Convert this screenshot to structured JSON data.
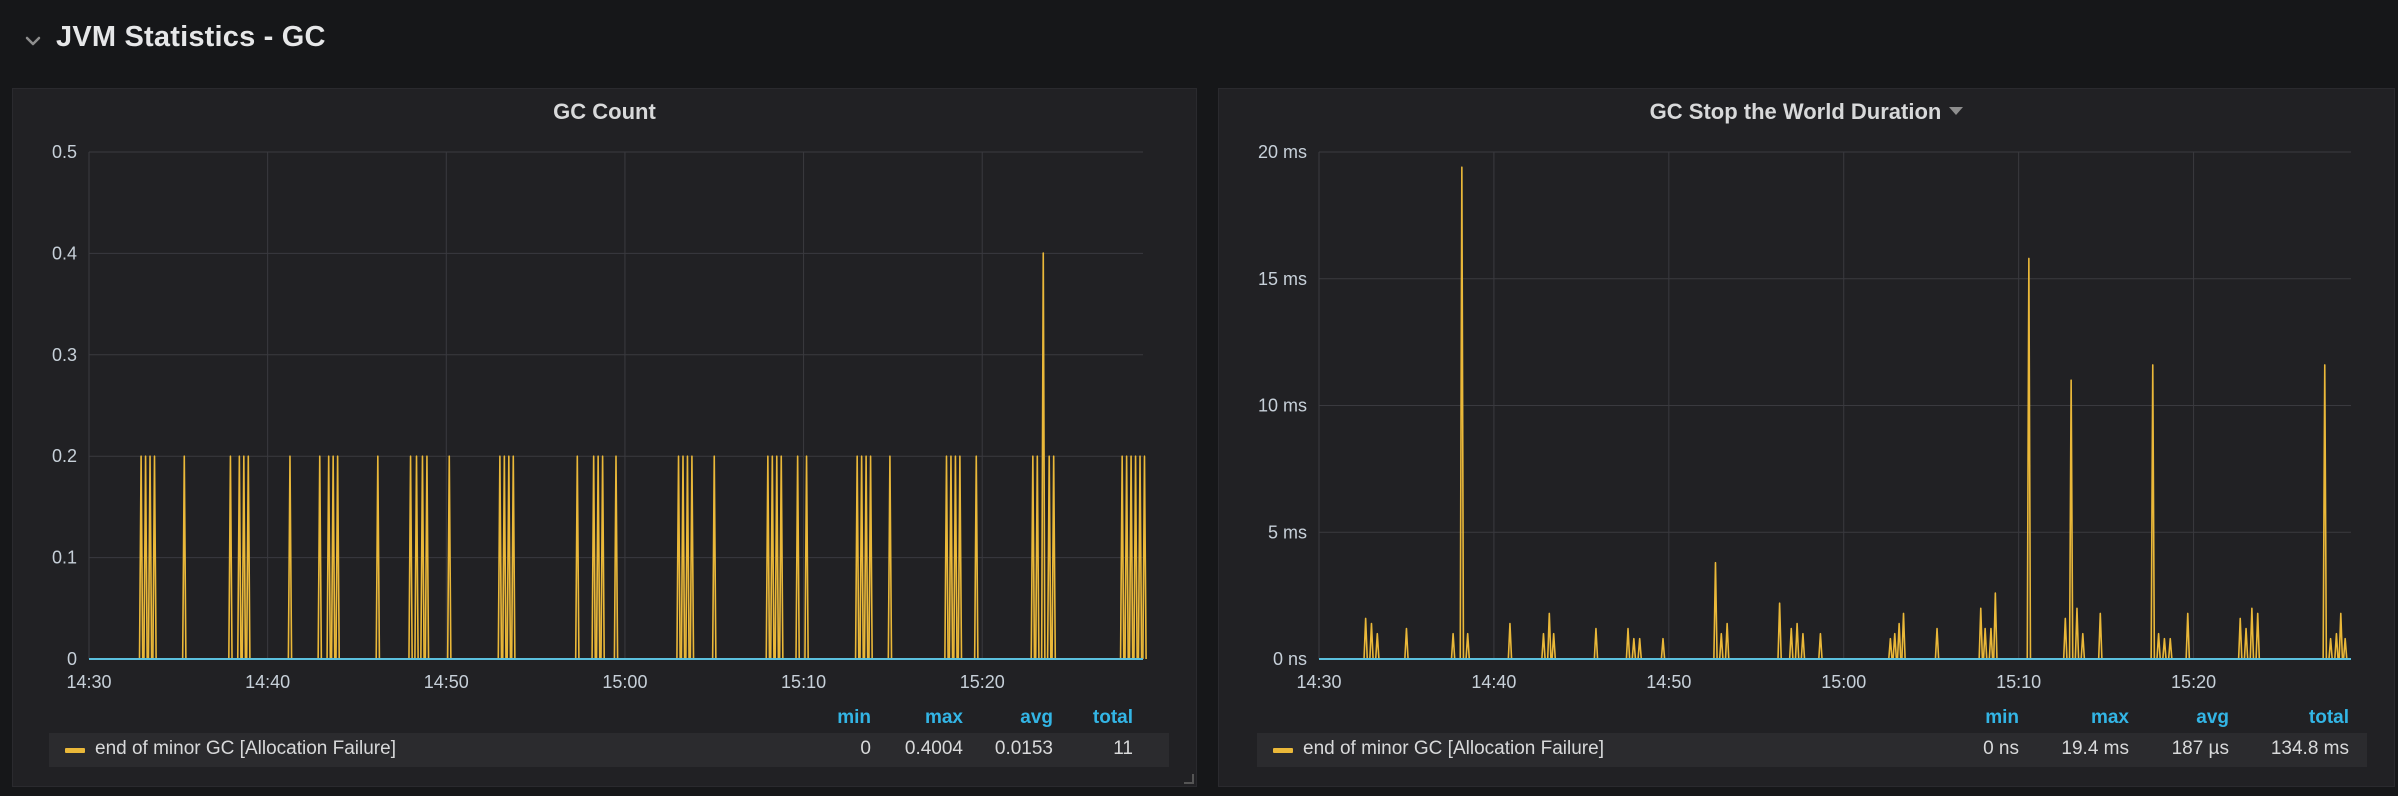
{
  "row": {
    "title": "JVM Statistics - GC",
    "collapse_icon": "chevron-down-icon"
  },
  "colors": {
    "series": "#eab839",
    "legend_header": "#33b5e5",
    "baseline": "#5bc0de",
    "grid": "#3a3a3f"
  },
  "panels": {
    "gc_count": {
      "title": "GC Count",
      "legend": {
        "headers": {
          "min": "min",
          "max": "max",
          "avg": "avg",
          "total": "total"
        },
        "series_name": "end of minor GC [Allocation Failure]",
        "min": "0",
        "max": "0.4004",
        "avg": "0.0153",
        "total": "11"
      }
    },
    "gc_stw": {
      "title": "GC Stop the World Duration",
      "title_menu_icon": "caret-down-icon",
      "legend": {
        "headers": {
          "min": "min",
          "max": "max",
          "avg": "avg",
          "total": "total"
        },
        "series_name": "end of minor GC [Allocation Failure]",
        "min": "0 ns",
        "max": "19.4 ms",
        "avg": "187 µs",
        "total": "134.8 ms"
      }
    }
  },
  "chart_data": [
    {
      "type": "line",
      "title": "GC Count",
      "x_ticks": [
        "14:30",
        "14:40",
        "14:50",
        "15:00",
        "15:10",
        "15:20"
      ],
      "y_ticks": [
        "0",
        "0.1",
        "0.2",
        "0.3",
        "0.4",
        "0.5"
      ],
      "xlim": [
        "14:30",
        "15:29"
      ],
      "ylim": [
        0,
        0.5
      ],
      "grid": true,
      "legend_position": "bottom",
      "series": [
        {
          "name": "end of minor GC [Allocation Failure]",
          "spikes": [
            {
              "t": "14:32:55",
              "v": 0.2
            },
            {
              "t": "14:33:10",
              "v": 0.2
            },
            {
              "t": "14:33:25",
              "v": 0.2
            },
            {
              "t": "14:33:40",
              "v": 0.2
            },
            {
              "t": "14:35:20",
              "v": 0.2
            },
            {
              "t": "14:37:55",
              "v": 0.2
            },
            {
              "t": "14:38:25",
              "v": 0.2
            },
            {
              "t": "14:38:40",
              "v": 0.2
            },
            {
              "t": "14:38:55",
              "v": 0.2
            },
            {
              "t": "14:41:15",
              "v": 0.2
            },
            {
              "t": "14:42:55",
              "v": 0.2
            },
            {
              "t": "14:43:25",
              "v": 0.2
            },
            {
              "t": "14:43:40",
              "v": 0.2
            },
            {
              "t": "14:43:55",
              "v": 0.2
            },
            {
              "t": "14:46:10",
              "v": 0.2
            },
            {
              "t": "14:48:00",
              "v": 0.2
            },
            {
              "t": "14:48:20",
              "v": 0.2
            },
            {
              "t": "14:48:40",
              "v": 0.2
            },
            {
              "t": "14:48:55",
              "v": 0.2
            },
            {
              "t": "14:50:10",
              "v": 0.2
            },
            {
              "t": "14:53:00",
              "v": 0.2
            },
            {
              "t": "14:53:15",
              "v": 0.2
            },
            {
              "t": "14:53:30",
              "v": 0.2
            },
            {
              "t": "14:53:45",
              "v": 0.2
            },
            {
              "t": "14:57:20",
              "v": 0.2
            },
            {
              "t": "14:58:15",
              "v": 0.2
            },
            {
              "t": "14:58:30",
              "v": 0.2
            },
            {
              "t": "14:58:45",
              "v": 0.2
            },
            {
              "t": "14:59:30",
              "v": 0.2
            },
            {
              "t": "15:03:00",
              "v": 0.2
            },
            {
              "t": "15:03:15",
              "v": 0.2
            },
            {
              "t": "15:03:30",
              "v": 0.2
            },
            {
              "t": "15:03:45",
              "v": 0.2
            },
            {
              "t": "15:05:00",
              "v": 0.2
            },
            {
              "t": "15:08:00",
              "v": 0.2
            },
            {
              "t": "15:08:15",
              "v": 0.2
            },
            {
              "t": "15:08:30",
              "v": 0.2
            },
            {
              "t": "15:08:45",
              "v": 0.2
            },
            {
              "t": "15:09:40",
              "v": 0.2
            },
            {
              "t": "15:10:10",
              "v": 0.2
            },
            {
              "t": "15:13:00",
              "v": 0.2
            },
            {
              "t": "15:13:15",
              "v": 0.2
            },
            {
              "t": "15:13:30",
              "v": 0.2
            },
            {
              "t": "15:13:45",
              "v": 0.2
            },
            {
              "t": "15:14:50",
              "v": 0.2
            },
            {
              "t": "15:18:00",
              "v": 0.2
            },
            {
              "t": "15:18:15",
              "v": 0.2
            },
            {
              "t": "15:18:30",
              "v": 0.2
            },
            {
              "t": "15:18:45",
              "v": 0.2
            },
            {
              "t": "15:19:40",
              "v": 0.2
            },
            {
              "t": "15:22:50",
              "v": 0.2
            },
            {
              "t": "15:23:05",
              "v": 0.2
            },
            {
              "t": "15:23:25",
              "v": 0.4004
            },
            {
              "t": "15:23:45",
              "v": 0.2
            },
            {
              "t": "15:24:00",
              "v": 0.2
            },
            {
              "t": "15:27:50",
              "v": 0.2
            },
            {
              "t": "15:28:05",
              "v": 0.2
            },
            {
              "t": "15:28:20",
              "v": 0.2
            },
            {
              "t": "15:28:35",
              "v": 0.2
            },
            {
              "t": "15:28:50",
              "v": 0.2
            },
            {
              "t": "15:29:05",
              "v": 0.2
            }
          ]
        }
      ]
    },
    {
      "type": "line",
      "title": "GC Stop the World Duration",
      "x_ticks": [
        "14:30",
        "14:40",
        "14:50",
        "15:00",
        "15:10",
        "15:20"
      ],
      "y_ticks": [
        "0 ns",
        "5 ms",
        "10 ms",
        "15 ms",
        "20 ms"
      ],
      "xlim": [
        "14:30",
        "15:29"
      ],
      "ylim": [
        0,
        20
      ],
      "y_unit": "ms",
      "grid": true,
      "legend_position": "bottom",
      "series": [
        {
          "name": "end of minor GC [Allocation Failure]",
          "spikes": [
            {
              "t": "14:32:40",
              "v": 1.6
            },
            {
              "t": "14:33:00",
              "v": 1.4
            },
            {
              "t": "14:33:20",
              "v": 1.0
            },
            {
              "t": "14:35:00",
              "v": 1.2
            },
            {
              "t": "14:37:40",
              "v": 1.0
            },
            {
              "t": "14:38:10",
              "v": 19.4
            },
            {
              "t": "14:38:30",
              "v": 1.0
            },
            {
              "t": "14:40:55",
              "v": 1.4
            },
            {
              "t": "14:42:50",
              "v": 1.0
            },
            {
              "t": "14:43:10",
              "v": 1.8
            },
            {
              "t": "14:43:25",
              "v": 1.0
            },
            {
              "t": "14:45:50",
              "v": 1.2
            },
            {
              "t": "14:47:40",
              "v": 1.2
            },
            {
              "t": "14:48:00",
              "v": 0.8
            },
            {
              "t": "14:48:20",
              "v": 0.8
            },
            {
              "t": "14:49:40",
              "v": 0.8
            },
            {
              "t": "14:52:40",
              "v": 3.8
            },
            {
              "t": "14:53:00",
              "v": 1.0
            },
            {
              "t": "14:53:20",
              "v": 1.4
            },
            {
              "t": "14:56:20",
              "v": 2.2
            },
            {
              "t": "14:57:00",
              "v": 1.2
            },
            {
              "t": "14:57:20",
              "v": 1.4
            },
            {
              "t": "14:57:40",
              "v": 1.0
            },
            {
              "t": "14:58:40",
              "v": 1.0
            },
            {
              "t": "15:02:40",
              "v": 0.8
            },
            {
              "t": "15:02:55",
              "v": 1.0
            },
            {
              "t": "15:03:10",
              "v": 1.4
            },
            {
              "t": "15:03:25",
              "v": 1.8
            },
            {
              "t": "15:05:20",
              "v": 1.2
            },
            {
              "t": "15:07:50",
              "v": 2.0
            },
            {
              "t": "15:08:05",
              "v": 1.2
            },
            {
              "t": "15:08:25",
              "v": 1.2
            },
            {
              "t": "15:08:40",
              "v": 2.6
            },
            {
              "t": "15:10:35",
              "v": 15.8
            },
            {
              "t": "15:12:40",
              "v": 1.6
            },
            {
              "t": "15:13:00",
              "v": 11.0
            },
            {
              "t": "15:13:20",
              "v": 2.0
            },
            {
              "t": "15:13:40",
              "v": 1.0
            },
            {
              "t": "15:14:40",
              "v": 1.8
            },
            {
              "t": "15:17:40",
              "v": 11.6
            },
            {
              "t": "15:18:00",
              "v": 1.0
            },
            {
              "t": "15:18:20",
              "v": 0.8
            },
            {
              "t": "15:18:40",
              "v": 0.8
            },
            {
              "t": "15:19:40",
              "v": 1.8
            },
            {
              "t": "15:22:40",
              "v": 1.6
            },
            {
              "t": "15:23:00",
              "v": 1.2
            },
            {
              "t": "15:23:20",
              "v": 2.0
            },
            {
              "t": "15:23:40",
              "v": 1.8
            },
            {
              "t": "15:27:30",
              "v": 11.6
            },
            {
              "t": "15:27:50",
              "v": 0.8
            },
            {
              "t": "15:28:10",
              "v": 1.0
            },
            {
              "t": "15:28:25",
              "v": 1.8
            },
            {
              "t": "15:28:40",
              "v": 0.8
            }
          ]
        }
      ]
    }
  ]
}
